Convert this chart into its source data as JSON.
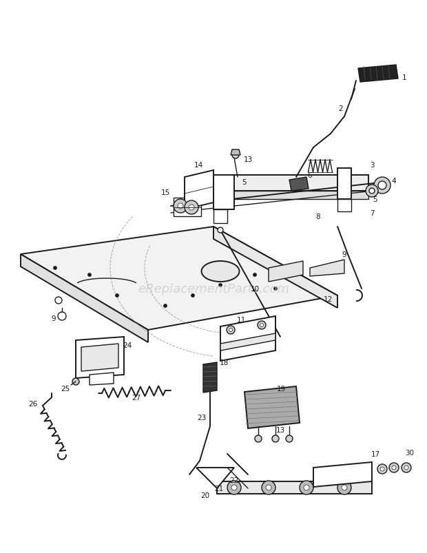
{
  "bg_color": "#ffffff",
  "line_color": "#1a1a1a",
  "gray_color": "#888888",
  "light_gray": "#cccccc",
  "dark_fill": "#333333",
  "mid_gray": "#aaaaaa",
  "watermark_text": "eReplacementParts.com",
  "watermark_color": "#c8c8c8",
  "watermark_fontsize": 13,
  "fig_width": 6.2,
  "fig_height": 8.04,
  "dpi": 100
}
